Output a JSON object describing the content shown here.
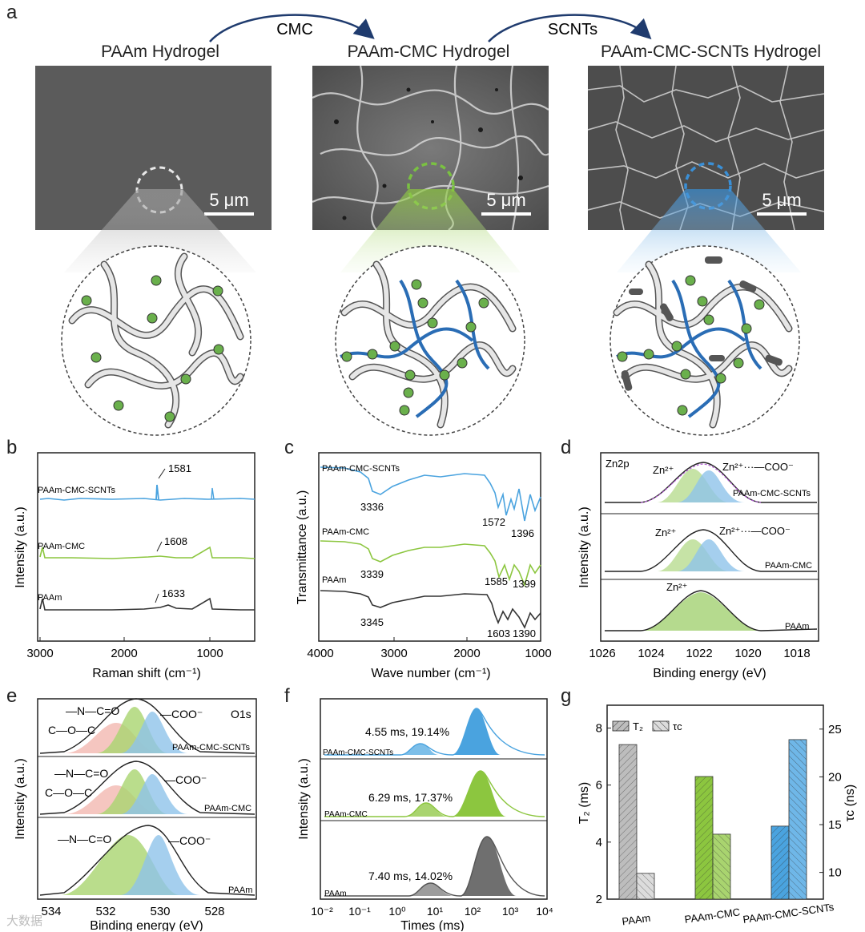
{
  "panel_a": {
    "label": "a",
    "titles": [
      "PAAm Hydrogel",
      "PAAm-CMC Hydrogel",
      "PAAm-CMC-SCNTs Hydrogel"
    ],
    "arrow_labels": [
      "CMC",
      "SCNTs"
    ],
    "scale_bar": "5 μm",
    "colors": {
      "grey": "#bfbfbf",
      "green": "#7ac142",
      "blue": "#3a8fd6",
      "chain_blue": "#2a6db5"
    }
  },
  "chart_data": [
    {
      "id": "b",
      "label": "b",
      "type": "line",
      "xlabel": "Raman shift (cm⁻¹)",
      "ylabel": "Intensity (a.u.)",
      "xlim": [
        3000,
        500
      ],
      "xticks": [
        "3000",
        "2000",
        "1000"
      ],
      "series": [
        {
          "name": "PAAm-CMC-SCNTs",
          "color": "#4aa3df",
          "peak_label": "1581"
        },
        {
          "name": "PAAm-CMC",
          "color": "#8cc63f",
          "peak_label": "1608"
        },
        {
          "name": "PAAm",
          "color": "#333333",
          "peak_label": "1633"
        }
      ]
    },
    {
      "id": "c",
      "label": "c",
      "type": "line",
      "xlabel": "Wave number (cm⁻¹)",
      "ylabel": "Transmittance (a.u.)",
      "xlim": [
        4000,
        1000
      ],
      "xticks": [
        "4000",
        "3000",
        "2000",
        "1000"
      ],
      "series": [
        {
          "name": "PAAm-CMC-SCNTs",
          "color": "#4aa3df",
          "labels": [
            "3336",
            "1572",
            "1396"
          ]
        },
        {
          "name": "PAAm-CMC",
          "color": "#8cc63f",
          "labels": [
            "3339",
            "1585",
            "1399"
          ]
        },
        {
          "name": "PAAm",
          "color": "#333333",
          "labels": [
            "3345",
            "1603",
            "1390"
          ]
        }
      ]
    },
    {
      "id": "d",
      "label": "d",
      "type": "line",
      "title": "Zn2p",
      "xlabel": "Binding energy (eV)",
      "ylabel": "Intensity (a.u.)",
      "xlim": [
        1026,
        1017
      ],
      "xticks": [
        "1026",
        "1024",
        "1022",
        "1020",
        "1018"
      ],
      "series": [
        {
          "name": "PAAm-CMC-SCNTs",
          "peaks": [
            "Zn²⁺",
            "Zn²⁺···—COO⁻"
          ]
        },
        {
          "name": "PAAm-CMC",
          "peaks": [
            "Zn²⁺",
            "Zn²⁺···—COO⁻"
          ]
        },
        {
          "name": "PAAm",
          "peaks": [
            "Zn²⁺"
          ]
        }
      ]
    },
    {
      "id": "e",
      "label": "e",
      "type": "line",
      "title": "O1s",
      "xlabel": "Binding energy (eV)",
      "ylabel": "Intensity (a.u.)",
      "xlim": [
        535,
        527
      ],
      "xticks": [
        "534",
        "532",
        "530",
        "528"
      ],
      "series": [
        {
          "name": "PAAm-CMC-SCNTs",
          "peaks": [
            "—N—C=O",
            "C—O—C",
            "—COO⁻"
          ]
        },
        {
          "name": "PAAm-CMC",
          "peaks": [
            "—N—C=O",
            "C—O—C",
            "—COO⁻"
          ]
        },
        {
          "name": "PAAm",
          "peaks": [
            "—N—C=O",
            "—COO⁻"
          ]
        }
      ]
    },
    {
      "id": "f",
      "label": "f",
      "type": "area",
      "xlabel": "Times (ms)",
      "ylabel": "Intensity (a.u.)",
      "xscale": "log",
      "xlim": [
        0.01,
        10000
      ],
      "xticks": [
        "10⁻²",
        "10⁻¹",
        "10⁰",
        "10¹",
        "10²",
        "10³",
        "10⁴"
      ],
      "series": [
        {
          "name": "PAAm-CMC-SCNTs",
          "color": "#4aa3df",
          "annotation": "4.55 ms, 19.14%",
          "peak1_ms": 4.55,
          "peak2_ms": 180
        },
        {
          "name": "PAAm-CMC",
          "color": "#8cc63f",
          "annotation": "6.29 ms, 17.37%",
          "peak1_ms": 6.29,
          "peak2_ms": 200
        },
        {
          "name": "PAAm",
          "color": "#777777",
          "annotation": "7.40 ms, 14.02%",
          "peak1_ms": 7.4,
          "peak2_ms": 230
        }
      ]
    },
    {
      "id": "g",
      "label": "g",
      "type": "bar",
      "categories": [
        "PAAm",
        "PAAm-CMC",
        "PAAm-CMC-SCNTs"
      ],
      "ylabel_left": "T₂ (ms)",
      "ylabel_right": "τc (ns)",
      "ylim_left": [
        2,
        8.8
      ],
      "ylim_right": [
        7.2,
        27.5
      ],
      "yticks_left": [
        "2",
        "4",
        "6",
        "8"
      ],
      "yticks_right": [
        "10",
        "15",
        "20",
        "25"
      ],
      "legend": [
        "T₂",
        "τc"
      ],
      "series": [
        {
          "name": "T₂",
          "axis": "left",
          "values": [
            7.42,
            6.3,
            4.56
          ],
          "colors": [
            "#bdbdbd",
            "#8cc63f",
            "#4aa3df"
          ]
        },
        {
          "name": "τc",
          "axis": "right",
          "values": [
            9.9,
            14.0,
            23.9
          ],
          "colors": [
            "#dcdcdc",
            "#a9d46f",
            "#6fb7e8"
          ]
        }
      ]
    }
  ],
  "watermark": "大数据"
}
